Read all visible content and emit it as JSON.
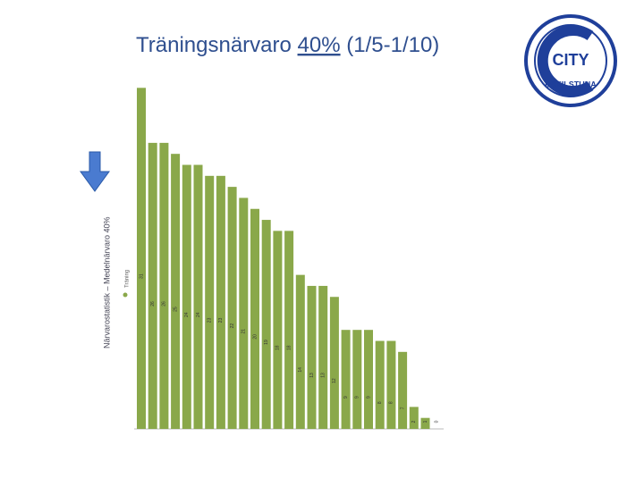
{
  "header": {
    "title_prefix": "Träningsnärvaro ",
    "title_highlight": "40%",
    "title_suffix": " (1/5-1/10)"
  },
  "logo": {
    "top": "CITY",
    "bottom": "ESKILSTUNA"
  },
  "chart_data": {
    "type": "bar",
    "title": "Närvarostatistik – Medelnärvaro 40%",
    "series": [
      {
        "name": "Träning",
        "color": "#8aa84a",
        "values": [
          31,
          26,
          26,
          25,
          24,
          24,
          23,
          23,
          22,
          21,
          20,
          19,
          18,
          18,
          14,
          13,
          13,
          12,
          9,
          9,
          9,
          8,
          8,
          7,
          2,
          1,
          0
        ]
      }
    ],
    "ylim": [
      0,
      32
    ]
  }
}
